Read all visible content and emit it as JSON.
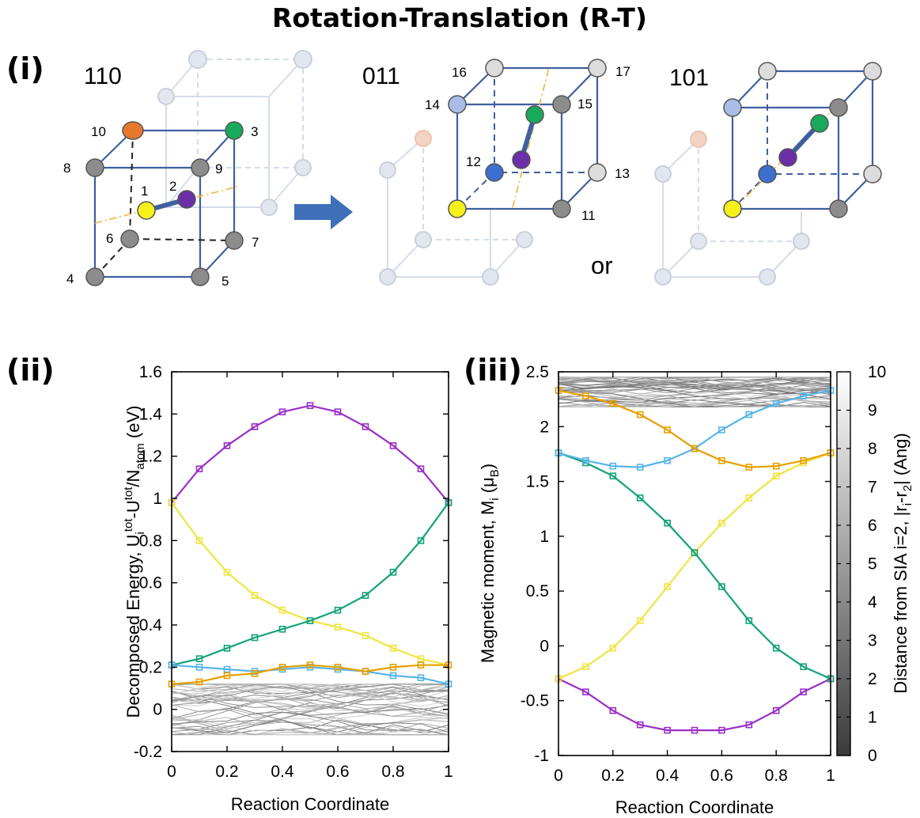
{
  "figure_title": "Rotation-Translation (R-T)",
  "panels": {
    "i": "(i)",
    "ii": "(ii)",
    "iii": "(iii)"
  },
  "cubes": [
    {
      "label": "110",
      "numbers": [
        "10",
        "3",
        "8",
        "9",
        "1",
        "2",
        "6",
        "7",
        "4",
        "5"
      ]
    },
    {
      "label": "011",
      "numbers": [
        "16",
        "17",
        "14",
        "15",
        "12",
        "13",
        "11"
      ]
    },
    {
      "label": "101",
      "numbers": []
    }
  ],
  "or_text": "or",
  "colors": {
    "purple": "#9b2fc7",
    "yellow": "#f0e442",
    "green": "#13a37a",
    "blue": "#56b4e9",
    "orange": "#e69f00",
    "gray_bg": "#9a9a9a",
    "atom_gray": "#8c8c8c",
    "atom_orange": "#e8772e",
    "atom_green": "#18a95a",
    "atom_purple": "#6b2fa8",
    "atom_blue": "#3c6fd0",
    "atom_yellow": "#f7f11a",
    "cube_edge": "#3f5f9f",
    "arrow": "#3e6fb8"
  },
  "chart_data": [
    {
      "type": "line",
      "panel": "(ii)",
      "xlabel": "Reaction Coordinate",
      "ylabel": "Decomposed Energy, U_i^tot - U^tot/N_atom (eV)",
      "ylabel_parts": {
        "a": "Decomposed Energy, U",
        "sub1": "i",
        "sup1": "tot",
        "b": "-U",
        "sup2": "tot",
        "c": "/N",
        "sub2": "atom",
        "d": " (eV)"
      },
      "xlim": [
        0,
        1
      ],
      "ylim": [
        -0.2,
        1.6
      ],
      "xticks": [
        "0",
        "0.2",
        "0.4",
        "0.6",
        "0.8",
        "1"
      ],
      "yticks": [
        "-0.2",
        "0",
        "0.2",
        "0.4",
        "0.6",
        "0.8",
        "1",
        "1.2",
        "1.4",
        "1.6"
      ],
      "x": [
        0,
        0.1,
        0.2,
        0.3,
        0.4,
        0.5,
        0.6,
        0.7,
        0.8,
        0.9,
        1
      ],
      "series": [
        {
          "color": "#9b2fc7",
          "values": [
            0.98,
            1.14,
            1.25,
            1.34,
            1.41,
            1.44,
            1.41,
            1.34,
            1.25,
            1.14,
            0.98
          ]
        },
        {
          "color": "#f0e442",
          "values": [
            0.98,
            0.8,
            0.65,
            0.54,
            0.47,
            0.42,
            0.39,
            0.35,
            0.29,
            0.24,
            0.21
          ]
        },
        {
          "color": "#13a37a",
          "values": [
            0.21,
            0.24,
            0.29,
            0.34,
            0.38,
            0.42,
            0.47,
            0.54,
            0.65,
            0.8,
            0.98
          ]
        },
        {
          "color": "#56b4e9",
          "values": [
            0.21,
            0.2,
            0.19,
            0.18,
            0.19,
            0.2,
            0.19,
            0.18,
            0.16,
            0.15,
            0.12
          ]
        },
        {
          "color": "#e69f00",
          "values": [
            0.12,
            0.13,
            0.16,
            0.17,
            0.2,
            0.21,
            0.2,
            0.18,
            0.2,
            0.21,
            0.21
          ]
        }
      ],
      "background_lines": {
        "count": 42,
        "range": [
          -0.12,
          0.12
        ],
        "color": "#9a9a9a"
      }
    },
    {
      "type": "line",
      "panel": "(iii)",
      "xlabel": "Reaction Coordinate",
      "ylabel": "Magnetic moment, M_i (μB)",
      "ylabel_parts": {
        "a": "Magnetic moment, M",
        "sub1": "i",
        "b": " (μ",
        "sub2": "B",
        "c": ")"
      },
      "xlim": [
        0,
        1
      ],
      "ylim": [
        -1,
        2.5
      ],
      "xticks": [
        "0",
        "0.2",
        "0.4",
        "0.6",
        "0.8",
        "1"
      ],
      "yticks": [
        "-1",
        "-0.5",
        "0",
        "0.5",
        "1",
        "1.5",
        "2",
        "2.5"
      ],
      "x": [
        0,
        0.1,
        0.2,
        0.3,
        0.4,
        0.5,
        0.6,
        0.7,
        0.8,
        0.9,
        1
      ],
      "series": [
        {
          "color": "#9b2fc7",
          "values": [
            -0.3,
            -0.42,
            -0.59,
            -0.72,
            -0.77,
            -0.77,
            -0.77,
            -0.72,
            -0.59,
            -0.42,
            -0.3
          ]
        },
        {
          "color": "#f0e442",
          "values": [
            -0.3,
            -0.19,
            -0.02,
            0.23,
            0.54,
            0.85,
            1.12,
            1.35,
            1.55,
            1.67,
            1.76
          ]
        },
        {
          "color": "#13a37a",
          "values": [
            1.76,
            1.67,
            1.55,
            1.35,
            1.12,
            0.85,
            0.54,
            0.23,
            -0.02,
            -0.19,
            -0.3
          ]
        },
        {
          "color": "#56b4e9",
          "values": [
            1.76,
            1.69,
            1.64,
            1.63,
            1.69,
            1.8,
            1.97,
            2.11,
            2.21,
            2.28,
            2.33
          ]
        },
        {
          "color": "#e69f00",
          "values": [
            2.33,
            2.28,
            2.21,
            2.11,
            1.97,
            1.8,
            1.69,
            1.63,
            1.64,
            1.69,
            1.76
          ]
        }
      ],
      "background_lines": {
        "count": 42,
        "range": [
          2.18,
          2.45
        ],
        "color": "#9a9a9a"
      },
      "colorbar": {
        "label": "Distance from SIA i=2, |r_i-r_2| (Ang)",
        "label_parts": {
          "a": "Distance from SIA i=2, |r",
          "sub1": "i",
          "b": "-r",
          "sub2": "2",
          "c": "| (Ang)"
        },
        "ticks": [
          "0",
          "1",
          "2",
          "3",
          "4",
          "5",
          "6",
          "7",
          "8",
          "9",
          "10"
        ],
        "range": [
          0,
          10
        ]
      }
    }
  ]
}
